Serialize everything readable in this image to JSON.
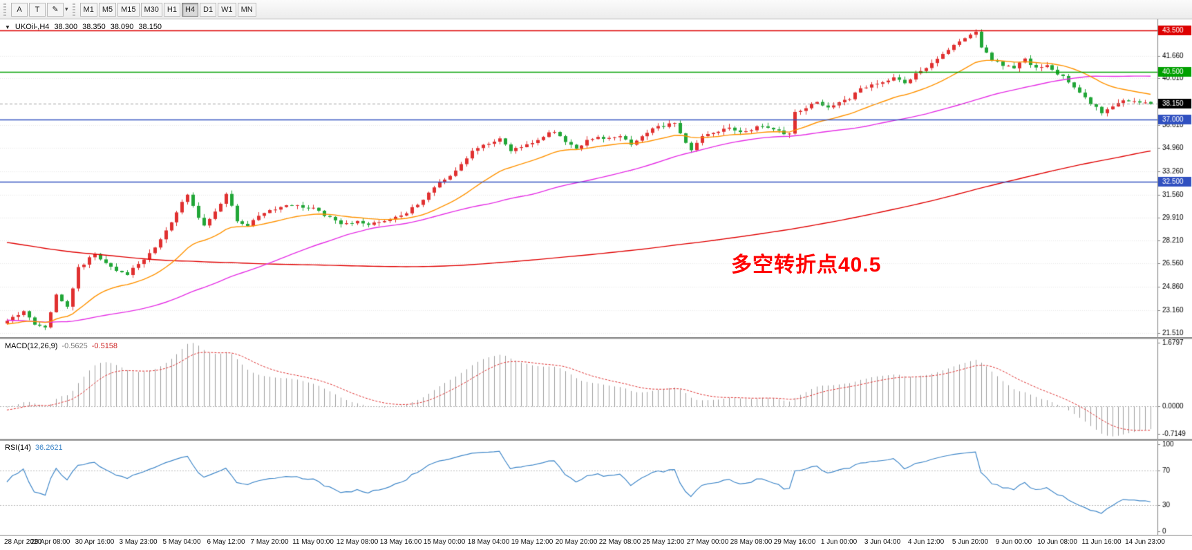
{
  "toolbar": {
    "tools": [
      {
        "id": "pointer",
        "label": "A"
      },
      {
        "id": "text",
        "label": "T"
      },
      {
        "id": "draw",
        "label": "✎"
      }
    ],
    "dropdown_caret": "▾",
    "timeframes": [
      "M1",
      "M5",
      "M15",
      "M30",
      "H1",
      "H4",
      "D1",
      "W1",
      "MN"
    ],
    "active_timeframe": "H4"
  },
  "chart_header": {
    "collapse_glyph": "▼",
    "symbol_period": "UKOil-,H4",
    "open": "38.300",
    "high": "38.350",
    "low": "38.090",
    "close": "38.150"
  },
  "annotation": {
    "text": "多空转折点40.5",
    "color": "#ff0000"
  },
  "levels": [
    {
      "label": "43.500",
      "value": 43.5,
      "color": "#dd0000",
      "style": "line"
    },
    {
      "label": "40.500",
      "value": 40.5,
      "color": "#00a000",
      "style": "line"
    },
    {
      "label": "38.150",
      "value": 38.15,
      "color": "#000000",
      "style": "current"
    },
    {
      "label": "37.000",
      "value": 37.0,
      "color": "#3050c0",
      "style": "line"
    },
    {
      "label": "32.500",
      "value": 32.5,
      "color": "#3050c0",
      "style": "line"
    }
  ],
  "price_scale": {
    "ticks": [
      "41.660",
      "40.010",
      "36.610",
      "34.960",
      "33.260",
      "31.560",
      "29.910",
      "28.210",
      "26.560",
      "24.860",
      "23.160",
      "21.510"
    ]
  },
  "macd": {
    "name": "MACD(12,26,9)",
    "main_value": "-0.5625",
    "signal_value": "-0.5158",
    "ticks": [
      "1.6797",
      "0.0000",
      "-0.7149"
    ]
  },
  "rsi": {
    "name": "RSI(14)",
    "value": "36.2621",
    "ticks": [
      "100",
      "70",
      "30",
      "0"
    ],
    "levels": [
      70,
      30
    ]
  },
  "time_axis": [
    "28 Apr 2020",
    "29 Apr 08:00",
    "30 Apr 16:00",
    "3 May 23:00",
    "5 May 04:00",
    "6 May 12:00",
    "7 May 20:00",
    "11 May 00:00",
    "12 May 08:00",
    "13 May 16:00",
    "15 May 00:00",
    "18 May 04:00",
    "19 May 12:00",
    "20 May 20:00",
    "22 May 08:00",
    "25 May 12:00",
    "27 May 00:00",
    "28 May 08:00",
    "29 May 16:00",
    "1 Jun 00:00",
    "3 Jun 04:00",
    "4 Jun 12:00",
    "5 Jun 20:00",
    "9 Jun 00:00",
    "10 Jun 08:00",
    "11 Jun 16:00",
    "14 Jun 23:00"
  ],
  "chart_data": {
    "type": "candlestick",
    "symbol": "UKOil-",
    "timeframe": "H4",
    "bars_visible": 210,
    "history_bars": 220,
    "y_range": [
      21.2,
      44.3
    ],
    "seed": 11,
    "noise": 0.22,
    "wick": 0.26,
    "history_path": [
      [
        -220,
        36.0
      ],
      [
        -150,
        32.5
      ],
      [
        -90,
        27.5
      ],
      [
        -50,
        23.5
      ],
      [
        -25,
        21.8
      ],
      [
        -1,
        22.2
      ]
    ],
    "close_path": [
      [
        0,
        22.3
      ],
      [
        3,
        23.1
      ],
      [
        5,
        22.2
      ],
      [
        7,
        22.0
      ],
      [
        9,
        24.2
      ],
      [
        11,
        23.4
      ],
      [
        13,
        26.2
      ],
      [
        16,
        27.3
      ],
      [
        18,
        26.6
      ],
      [
        20,
        26.1
      ],
      [
        22,
        25.8
      ],
      [
        24,
        26.5
      ],
      [
        26,
        27.2
      ],
      [
        28,
        28.3
      ],
      [
        30,
        29.6
      ],
      [
        33,
        31.6
      ],
      [
        35,
        29.9
      ],
      [
        36,
        29.4
      ],
      [
        38,
        30.3
      ],
      [
        40,
        31.7
      ],
      [
        42,
        29.7
      ],
      [
        44,
        29.3
      ],
      [
        46,
        30.0
      ],
      [
        48,
        30.4
      ],
      [
        52,
        30.8
      ],
      [
        56,
        30.6
      ],
      [
        58,
        30.1
      ],
      [
        60,
        29.6
      ],
      [
        62,
        29.4
      ],
      [
        64,
        29.6
      ],
      [
        66,
        29.3
      ],
      [
        69,
        29.7
      ],
      [
        72,
        30.0
      ],
      [
        74,
        30.6
      ],
      [
        76,
        31.2
      ],
      [
        78,
        32.1
      ],
      [
        80,
        32.6
      ],
      [
        82,
        33.4
      ],
      [
        84,
        34.3
      ],
      [
        86,
        35.0
      ],
      [
        88,
        35.3
      ],
      [
        90,
        35.6
      ],
      [
        92,
        34.7
      ],
      [
        94,
        35.0
      ],
      [
        96,
        35.3
      ],
      [
        98,
        35.8
      ],
      [
        100,
        36.2
      ],
      [
        102,
        35.4
      ],
      [
        104,
        34.9
      ],
      [
        106,
        35.5
      ],
      [
        108,
        35.8
      ],
      [
        110,
        35.6
      ],
      [
        112,
        35.9
      ],
      [
        114,
        35.2
      ],
      [
        116,
        35.9
      ],
      [
        118,
        36.4
      ],
      [
        120,
        36.5
      ],
      [
        122,
        36.8
      ],
      [
        124,
        35.3
      ],
      [
        125,
        34.9
      ],
      [
        127,
        35.8
      ],
      [
        130,
        36.1
      ],
      [
        132,
        36.4
      ],
      [
        134,
        36.2
      ],
      [
        136,
        36.3
      ],
      [
        138,
        36.6
      ],
      [
        140,
        36.4
      ],
      [
        142,
        35.9
      ],
      [
        143,
        36.1
      ],
      [
        144,
        37.6
      ],
      [
        146,
        37.9
      ],
      [
        148,
        38.3
      ],
      [
        150,
        38.0
      ],
      [
        152,
        38.3
      ],
      [
        154,
        38.6
      ],
      [
        156,
        39.2
      ],
      [
        158,
        39.6
      ],
      [
        160,
        39.8
      ],
      [
        162,
        40.1
      ],
      [
        164,
        39.6
      ],
      [
        166,
        40.3
      ],
      [
        168,
        40.8
      ],
      [
        170,
        41.4
      ],
      [
        172,
        42.1
      ],
      [
        174,
        42.7
      ],
      [
        176,
        43.2
      ],
      [
        177,
        43.3
      ],
      [
        178,
        42.3
      ],
      [
        180,
        41.4
      ],
      [
        182,
        41.0
      ],
      [
        184,
        40.8
      ],
      [
        186,
        41.4
      ],
      [
        188,
        40.7
      ],
      [
        190,
        41.0
      ],
      [
        192,
        40.4
      ],
      [
        194,
        39.8
      ],
      [
        196,
        38.9
      ],
      [
        198,
        38.2
      ],
      [
        200,
        37.5
      ],
      [
        202,
        38.0
      ],
      [
        204,
        38.5
      ],
      [
        206,
        38.4
      ],
      [
        208,
        38.3
      ],
      [
        209,
        38.15
      ]
    ],
    "overlays": [
      {
        "name": "ma-fast",
        "method": "ema",
        "period": 21,
        "color": "#ff9300"
      },
      {
        "name": "ma-mid",
        "method": "sma",
        "period": 55,
        "color": "#e52de5"
      },
      {
        "name": "ma-slow",
        "method": "sma",
        "period": 200,
        "color": "#e00000"
      }
    ],
    "colors": {
      "bull": "#e03030",
      "bear": "#21a637",
      "grid": "#e9e9e9",
      "macd_hist": "#9e9e9e",
      "macd_signal": "#e03030",
      "rsi": "#3f87c9",
      "current_line": "#999999"
    },
    "indicators": [
      {
        "name": "MACD",
        "params": [
          12,
          26,
          9
        ],
        "display_values": [
          -0.5625,
          -0.5158
        ],
        "range": [
          -0.7149,
          1.6797
        ]
      },
      {
        "name": "RSI",
        "params": [
          14
        ],
        "display_value": 36.2621,
        "range": [
          0,
          100
        ],
        "levels": [
          70,
          30
        ]
      }
    ]
  }
}
